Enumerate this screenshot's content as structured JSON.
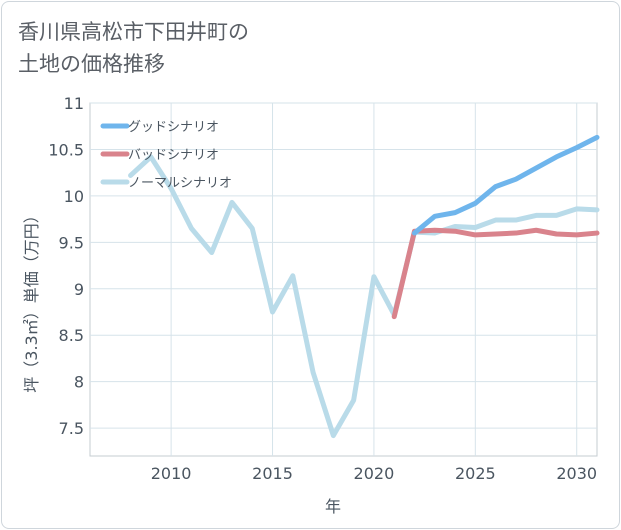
{
  "title_line1": "香川県高松市下田井町の",
  "title_line2": "土地の価格推移",
  "chart_data": {
    "type": "line",
    "xlabel": "年",
    "ylabel": "坪（3.3㎡）単価（万円）",
    "xlim": [
      2006,
      2031
    ],
    "ylim": [
      7.2,
      11
    ],
    "x_ticks": [
      2010,
      2015,
      2020,
      2025,
      2030
    ],
    "y_ticks": [
      7.5,
      8,
      8.5,
      9,
      9.5,
      10,
      10.5,
      11
    ],
    "y_tick_labels": [
      "7.5",
      "8",
      "8.5",
      "9",
      "9.5",
      "10",
      "10.5",
      "11"
    ],
    "grid": true,
    "legend_position": "top-left",
    "series": [
      {
        "name": "グッドシナリオ",
        "color": "#6fb5ec",
        "x": [
          2022,
          2023,
          2024,
          2025,
          2026,
          2027,
          2028,
          2029,
          2030,
          2031
        ],
        "y": [
          9.6,
          9.78,
          9.82,
          9.92,
          10.1,
          10.18,
          10.3,
          10.42,
          10.52,
          10.63
        ]
      },
      {
        "name": "バッドシナリオ",
        "color": "#d9838c",
        "x": [
          2021,
          2022,
          2023,
          2024,
          2025,
          2026,
          2027,
          2028,
          2029,
          2030,
          2031
        ],
        "y": [
          8.7,
          9.62,
          9.63,
          9.62,
          9.58,
          9.59,
          9.6,
          9.63,
          9.59,
          9.58,
          9.6
        ]
      },
      {
        "name": "ノーマルシナリオ",
        "color": "#b9dbe9",
        "x": [
          2008,
          2009,
          2010,
          2011,
          2012,
          2013,
          2014,
          2015,
          2016,
          2017,
          2018,
          2019,
          2020,
          2021,
          2022,
          2023,
          2024,
          2025,
          2026,
          2027,
          2028,
          2029,
          2030,
          2031
        ],
        "y": [
          10.22,
          10.42,
          10.08,
          9.65,
          9.39,
          9.93,
          9.65,
          8.75,
          9.14,
          8.1,
          7.42,
          7.8,
          9.13,
          8.72,
          9.61,
          9.6,
          9.67,
          9.66,
          9.74,
          9.74,
          9.79,
          9.79,
          9.86,
          9.85
        ]
      }
    ]
  }
}
